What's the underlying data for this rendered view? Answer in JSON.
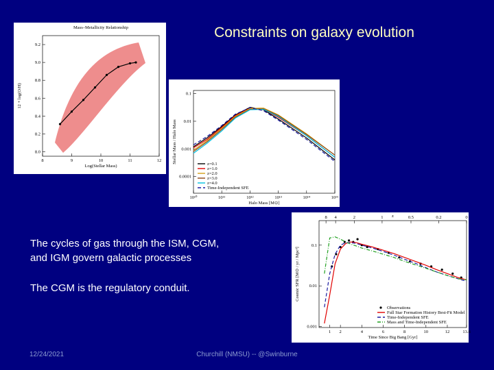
{
  "slide": {
    "title": "Constraints on galaxy evolution",
    "body": [
      "The cycles of gas through the ISM, CGM,",
      "and IGM govern galactic processes",
      "The CGM is the regulatory conduit."
    ],
    "footer": {
      "date": "12/24/2021",
      "center": "Churchill (NMSU) -- @Swinburne"
    }
  },
  "chart_data": [
    {
      "type": "scatter",
      "title": "Mass–Metallicity Relationship",
      "xlabel": "Log(Stellar Mass)",
      "ylabel": "12 + log(O/H)",
      "xlim": [
        8,
        12
      ],
      "ylim": [
        7.95,
        9.3
      ],
      "xticks": [
        8,
        9,
        10,
        11,
        12
      ],
      "yticks": [
        {
          "value": 8,
          "label": "8.0"
        },
        8.2,
        8.4,
        8.6,
        8.8,
        {
          "value": 9,
          "label": "9.0"
        },
        9.2
      ],
      "series": [
        {
          "color": "#000000",
          "style": "line-points",
          "x": [
            8.6,
            9.0,
            9.4,
            9.8,
            10.2,
            10.6,
            11.0,
            11.2
          ],
          "values": [
            8.31,
            8.45,
            8.58,
            8.72,
            8.86,
            8.95,
            8.99,
            9.0
          ]
        }
      ]
    },
    {
      "type": "line",
      "xlabel": "Halo Mass [M⊙]",
      "ylabel": "Stellar Mass / Halo Mass",
      "xlog": true,
      "ylog": true,
      "xlim": [
        10000000000.0,
        1000000000000000.0
      ],
      "ylim": [
        2.5e-05,
        0.13
      ],
      "xticks": [
        {
          "value": 10000000000.0,
          "label": "10¹⁰"
        },
        {
          "value": 100000000000.0,
          "label": "10¹¹"
        },
        {
          "value": 1000000000000.0,
          "label": "10¹²"
        },
        {
          "value": 10000000000000.0,
          "label": "10¹³"
        },
        {
          "value": 100000000000000.0,
          "label": "10¹⁴"
        },
        {
          "value": 1000000000000000.0,
          "label": "10¹⁵"
        }
      ],
      "yticks": [
        0.0001,
        0.001,
        0.01,
        0.1
      ],
      "legend": "lower left",
      "series": [
        {
          "name": "z=0.1",
          "color": "#000000",
          "style": "solid",
          "x": [
            10000000000.0,
            30000000000.0,
            100000000000.0,
            300000000000.0,
            1000000000000.0,
            3000000000000.0,
            10000000000000.0,
            100000000000000.0,
            1000000000000000.0
          ],
          "values": [
            0.0012,
            0.0025,
            0.0065,
            0.017,
            0.032,
            0.026,
            0.012,
            0.0025,
            0.0004
          ]
        },
        {
          "name": "z=1.0",
          "color": "#e00000",
          "style": "solid",
          "x": [
            10000000000.0,
            30000000000.0,
            100000000000.0,
            300000000000.0,
            1000000000000.0,
            3000000000000.0,
            10000000000000.0,
            100000000000000.0,
            1000000000000000.0
          ],
          "values": [
            0.0011,
            0.0022,
            0.006,
            0.016,
            0.03,
            0.027,
            0.014,
            0.003,
            0.0005
          ]
        },
        {
          "name": "z=2.0",
          "color": "#d4a017",
          "style": "solid",
          "x": [
            10000000000.0,
            30000000000.0,
            100000000000.0,
            300000000000.0,
            1000000000000.0,
            3000000000000.0,
            10000000000000.0,
            100000000000000.0,
            1000000000000000.0
          ],
          "values": [
            0.0009,
            0.002,
            0.0055,
            0.015,
            0.029,
            0.03,
            0.017,
            0.0035,
            0.0006
          ]
        },
        {
          "name": "z=3.0",
          "color": "#8b4513",
          "style": "solid",
          "x": [
            10000000000.0,
            30000000000.0,
            100000000000.0,
            300000000000.0,
            1000000000000.0,
            3000000000000.0,
            10000000000000.0,
            100000000000000.0,
            1000000000000000.0
          ],
          "values": [
            0.0008,
            0.0018,
            0.005,
            0.014,
            0.027,
            0.028,
            0.016,
            0.0033,
            0.0006
          ]
        },
        {
          "name": "z=4.0",
          "color": "#00c0e0",
          "style": "solid",
          "x": [
            10000000000.0,
            30000000000.0,
            100000000000.0,
            300000000000.0,
            1000000000000.0,
            3000000000000.0,
            10000000000000.0,
            100000000000000.0,
            1000000000000000.0
          ],
          "values": [
            0.0007,
            0.0016,
            0.0045,
            0.013,
            0.026,
            0.027,
            0.015,
            0.003,
            0.0005
          ]
        },
        {
          "name": "Time-Independent SFE",
          "color": "#1a1aa0",
          "style": "dashed",
          "x": [
            10000000000.0,
            30000000000.0,
            100000000000.0,
            300000000000.0,
            1000000000000.0,
            3000000000000.0,
            10000000000000.0,
            100000000000000.0,
            1000000000000000.0
          ],
          "values": [
            0.0014,
            0.0028,
            0.007,
            0.018,
            0.031,
            0.024,
            0.011,
            0.0022,
            0.00035
          ]
        }
      ]
    },
    {
      "type": "line",
      "xlabel": "Time Since Big Bang [Gyr]",
      "ylabel": "Cosmic SFR [M⊙ / yr / Mpc³]",
      "top_xlabel": "z",
      "ylog": true,
      "xlim": [
        0,
        13.8
      ],
      "ylim": [
        0.00095,
        0.4
      ],
      "xticks": [
        1,
        2,
        4,
        6,
        8,
        10,
        12,
        13.8
      ],
      "top_xticks": [
        {
          "value": 0.65,
          "label": "8"
        },
        {
          "value": 1.55,
          "label": "4"
        },
        {
          "value": 3.3,
          "label": "2"
        },
        {
          "value": 5.9,
          "label": "1"
        },
        {
          "value": 8.6,
          "label": "0.5"
        },
        {
          "value": 11.2,
          "label": "0.2"
        },
        {
          "value": 13.8,
          "label": "0"
        }
      ],
      "yticks": [
        0.001,
        0.01,
        0.1
      ],
      "legend": "lower right",
      "series": [
        {
          "name": "Observations",
          "color": "#000000",
          "style": "points",
          "x": [
            1.2,
            1.6,
            2,
            2.4,
            2.8,
            3.2,
            3.6,
            4,
            4.5,
            5.5,
            6.5,
            7.5,
            8.5,
            9.5,
            10.5,
            11.5,
            12.5,
            13.3
          ],
          "values": [
            0.03,
            0.06,
            0.09,
            0.12,
            0.13,
            0.12,
            0.14,
            0.1,
            0.09,
            0.08,
            0.065,
            0.05,
            0.04,
            0.035,
            0.03,
            0.025,
            0.02,
            0.016
          ]
        },
        {
          "name": "Full Star Formation History Best-Fit Model",
          "color": "#e00000",
          "style": "solid",
          "x": [
            0.5,
            1,
            1.5,
            2,
            2.5,
            3,
            3.5,
            4,
            5,
            6,
            7,
            8,
            9,
            10,
            11,
            12,
            13,
            13.8
          ],
          "values": [
            0.0012,
            0.006,
            0.035,
            0.08,
            0.11,
            0.12,
            0.115,
            0.105,
            0.09,
            0.075,
            0.062,
            0.05,
            0.04,
            0.032,
            0.025,
            0.02,
            0.016,
            0.014
          ]
        },
        {
          "name": "Time-Independent SFE",
          "color": "#1a1aa0",
          "style": "dashed",
          "x": [
            0.5,
            1,
            1.5,
            2,
            2.5,
            3,
            3.5,
            4,
            5,
            6,
            7,
            8,
            9,
            10,
            11,
            12,
            13,
            13.8
          ],
          "values": [
            0.003,
            0.02,
            0.06,
            0.1,
            0.115,
            0.115,
            0.11,
            0.1,
            0.085,
            0.07,
            0.057,
            0.045,
            0.036,
            0.028,
            0.022,
            0.018,
            0.015,
            0.013
          ]
        },
        {
          "name": "Mass and Time-Independent SFE",
          "color": "#20a020",
          "style": "dashdot",
          "x": [
            0.5,
            1,
            1.5,
            2,
            2.5,
            3,
            3.5,
            4,
            5,
            6,
            7,
            8,
            9,
            10,
            11,
            12,
            13,
            13.8
          ],
          "values": [
            0.02,
            0.15,
            0.16,
            0.14,
            0.12,
            0.105,
            0.095,
            0.085,
            0.072,
            0.06,
            0.05,
            0.04,
            0.033,
            0.027,
            0.022,
            0.018,
            0.015,
            0.014
          ]
        }
      ]
    }
  ]
}
